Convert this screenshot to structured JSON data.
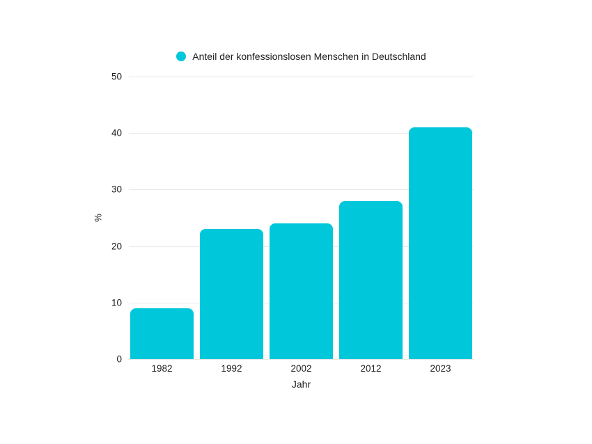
{
  "chart_data": {
    "type": "bar",
    "title": "",
    "legend": "Anteil der konfessionslosen Menschen in Deutschland",
    "legend_position": "top",
    "categories": [
      "1982",
      "1992",
      "2002",
      "2012",
      "2023"
    ],
    "values": [
      9,
      23,
      24,
      28,
      41
    ],
    "xlabel": "Jahr",
    "ylabel": "%",
    "ylim": [
      0,
      50
    ],
    "yticks": [
      0,
      10,
      20,
      30,
      40,
      50
    ],
    "grid": true,
    "colors": {
      "bar": "#00c7da",
      "grid": "#e8e8e8",
      "text": "#1c1c1c",
      "background": "#ffffff"
    }
  }
}
